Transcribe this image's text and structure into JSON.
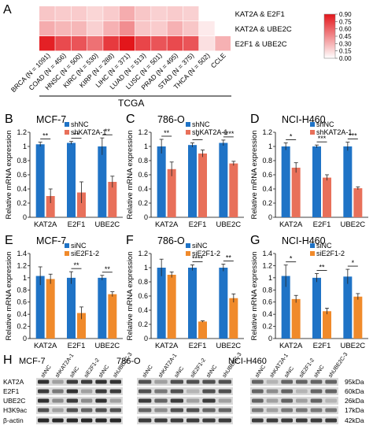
{
  "heatmap": {
    "letter": "A",
    "rows": [
      "KAT2A & E2F1",
      "KAT2A & UBE2C",
      "E2F1 & UBE2C"
    ],
    "columns": [
      "BRCA (N = 1091)",
      "COAD (N = 456)",
      "HNSC (N = 500)",
      "KIRC (N = 530)",
      "KIRP (N = 288)",
      "LIHC (N = 371)",
      "LUAD (N = 513)",
      "LUSC (N = 501)",
      "PRAD (N = 495)",
      "STAD (N = 375)",
      "THCA (N = 502)",
      "CCLE"
    ],
    "group_label": "TCGA",
    "colorbar_ticks": [
      "0.90",
      "0.75",
      "0.60",
      "0.45",
      "0.30",
      "0.15",
      "0.00"
    ],
    "values": [
      [
        0.22,
        0.2,
        0.2,
        0.16,
        0.2,
        0.32,
        0.22,
        0.18,
        0.2,
        0.18,
        0.0,
        0.0
      ],
      [
        0.32,
        0.28,
        0.28,
        0.18,
        0.3,
        0.44,
        0.22,
        0.2,
        0.3,
        0.22,
        0.08,
        0.0
      ],
      [
        0.86,
        0.7,
        0.66,
        0.55,
        0.76,
        0.9,
        0.72,
        0.66,
        0.7,
        0.66,
        0.12,
        0.3
      ]
    ]
  },
  "colors": {
    "blue": "#1f73c6",
    "shRed": "#e8705a",
    "siOrange": "#f08a2b",
    "heat": "#e3161b"
  },
  "bar_panels": [
    {
      "letter": "B",
      "title": "MCF-7",
      "legend": [
        "shNC",
        "shKAT2A-1"
      ],
      "color2": "shRed",
      "ylabel": "Relative mRNA expression",
      "ylim": [
        0,
        1.2
      ],
      "yticks": [
        "0",
        "0.2",
        "0.4",
        "0.6",
        "0.8",
        "1",
        "1.2"
      ],
      "categories": [
        "KAT2A",
        "E2F1",
        "UBE2C"
      ],
      "series": [
        {
          "name": "shNC",
          "values": [
            1.03,
            1.05,
            1.0
          ],
          "err": [
            0.03,
            0.02,
            0.12
          ]
        },
        {
          "name": "shKAT2A-1",
          "values": [
            0.3,
            0.35,
            0.5
          ],
          "err": [
            0.1,
            0.15,
            0.08
          ]
        }
      ],
      "sig": [
        "**",
        "**",
        "**"
      ]
    },
    {
      "letter": "C",
      "title": "786-O",
      "legend": [
        "shNC",
        "shKAT2A-1"
      ],
      "color2": "shRed",
      "ylabel": "Relative mRNA expression",
      "ylim": [
        0,
        1.2
      ],
      "yticks": [
        "0",
        "0.2",
        "0.4",
        "0.6",
        "0.8",
        "1",
        "1.2"
      ],
      "categories": [
        "KAT2A",
        "E2F1",
        "UBE2C"
      ],
      "series": [
        {
          "name": "shNC",
          "values": [
            1.0,
            1.02,
            1.05
          ],
          "err": [
            0.1,
            0.03,
            0.04
          ]
        },
        {
          "name": "shKAT2A-1",
          "values": [
            0.68,
            0.9,
            0.76
          ],
          "err": [
            0.1,
            0.05,
            0.03
          ]
        }
      ],
      "sig": [
        "**",
        "*",
        "****"
      ]
    },
    {
      "letter": "D",
      "title": "NCI-H460",
      "legend": [
        "shNC",
        "shKAT2A-1"
      ],
      "color2": "shRed",
      "ylabel": "Relative mRNA expression",
      "ylim": [
        0,
        1.2
      ],
      "yticks": [
        "0",
        "0.2",
        "0.4",
        "0.6",
        "0.8",
        "1",
        "1.2"
      ],
      "categories": [
        "KAT2A",
        "E2F1",
        "UBE2C"
      ],
      "series": [
        {
          "name": "shNC",
          "values": [
            1.0,
            1.0,
            1.0
          ],
          "err": [
            0.05,
            0.02,
            0.06
          ]
        },
        {
          "name": "shKAT2A-1",
          "values": [
            0.7,
            0.56,
            0.41
          ],
          "err": [
            0.07,
            0.04,
            0.02
          ]
        }
      ],
      "sig": [
        "*",
        "***",
        "***"
      ]
    },
    {
      "letter": "E",
      "title": "MCF-7",
      "legend": [
        "siNC",
        "siE2F1-2"
      ],
      "color2": "siOrange",
      "ylabel": "Relative mRNA expression",
      "ylim": [
        0,
        1.4
      ],
      "yticks": [
        "0",
        "0.2",
        "0.4",
        "0.6",
        "0.8",
        "1",
        "1.2",
        "1.4"
      ],
      "categories": [
        "KAT2A",
        "E2F1",
        "UBE2C"
      ],
      "series": [
        {
          "name": "siNC",
          "values": [
            1.03,
            1.0,
            1.0
          ],
          "err": [
            0.15,
            0.1,
            0.04
          ]
        },
        {
          "name": "siE2F1-2",
          "values": [
            0.98,
            0.42,
            0.73
          ],
          "err": [
            0.08,
            0.1,
            0.04
          ]
        }
      ],
      "sig": [
        "",
        "**",
        "**"
      ]
    },
    {
      "letter": "F",
      "title": "786-O",
      "legend": [
        "siNC",
        "siE2F1-2"
      ],
      "color2": "siOrange",
      "ylabel": "Relative mRNA expression",
      "ylim": [
        0,
        1.2
      ],
      "yticks": [
        "0",
        "0.2",
        "0.4",
        "0.6",
        "0.8",
        "1",
        "1.2"
      ],
      "categories": [
        "KAT2A",
        "E2F1",
        "UBE2C"
      ],
      "series": [
        {
          "name": "siNC",
          "values": [
            1.0,
            1.0,
            1.0
          ],
          "err": [
            0.12,
            0.04,
            0.05
          ]
        },
        {
          "name": "siE2F1-2",
          "values": [
            0.9,
            0.24,
            0.57
          ],
          "err": [
            0.04,
            0.01,
            0.06
          ]
        }
      ],
      "sig": [
        "",
        "****",
        "**"
      ]
    },
    {
      "letter": "G",
      "title": "NCI-H460",
      "legend": [
        "siNC",
        "siE2F1-2"
      ],
      "color2": "siOrange",
      "ylabel": "Relative mRNA expression",
      "ylim": [
        0,
        1.4
      ],
      "yticks": [
        "0",
        "0.2",
        "0.4",
        "0.6",
        "0.8",
        "1",
        "1.2",
        "1.4"
      ],
      "categories": [
        "KAT2A",
        "E2F1",
        "UBE2C"
      ],
      "series": [
        {
          "name": "siNC",
          "values": [
            1.03,
            1.0,
            1.02
          ],
          "err": [
            0.18,
            0.07,
            0.12
          ]
        },
        {
          "name": "siE2F1-2",
          "values": [
            0.65,
            0.45,
            0.69
          ],
          "err": [
            0.06,
            0.05,
            0.05
          ]
        }
      ],
      "sig": [
        "*",
        "**",
        "*"
      ]
    }
  ],
  "western": {
    "letter": "H",
    "row_labels": [
      "KAT2A",
      "E2F1",
      "UBE2C",
      "H3K9ac",
      "β-actin"
    ],
    "kda_labels": [
      "95kDa",
      "60kDa",
      "26kDa",
      "17kDa",
      "42kDa"
    ],
    "blots": [
      {
        "title": "MCF-7",
        "lanes": [
          "shNC",
          "shKAT2A-1",
          "siNC",
          "siE2F1-2",
          "shNC",
          "shUBE2C-3"
        ]
      },
      {
        "title": "786-O",
        "lanes": [
          "shNC",
          "shKAT2A-1",
          "siNC",
          "siE2F1-2",
          "shNC",
          "shUBE2C-3"
        ]
      },
      {
        "title": "NCI-H460",
        "lanes": [
          "shNC",
          "shKAT2A-1",
          "siNC",
          "siE2F1-2",
          "shNC",
          "shUBE2C-3"
        ]
      }
    ]
  }
}
